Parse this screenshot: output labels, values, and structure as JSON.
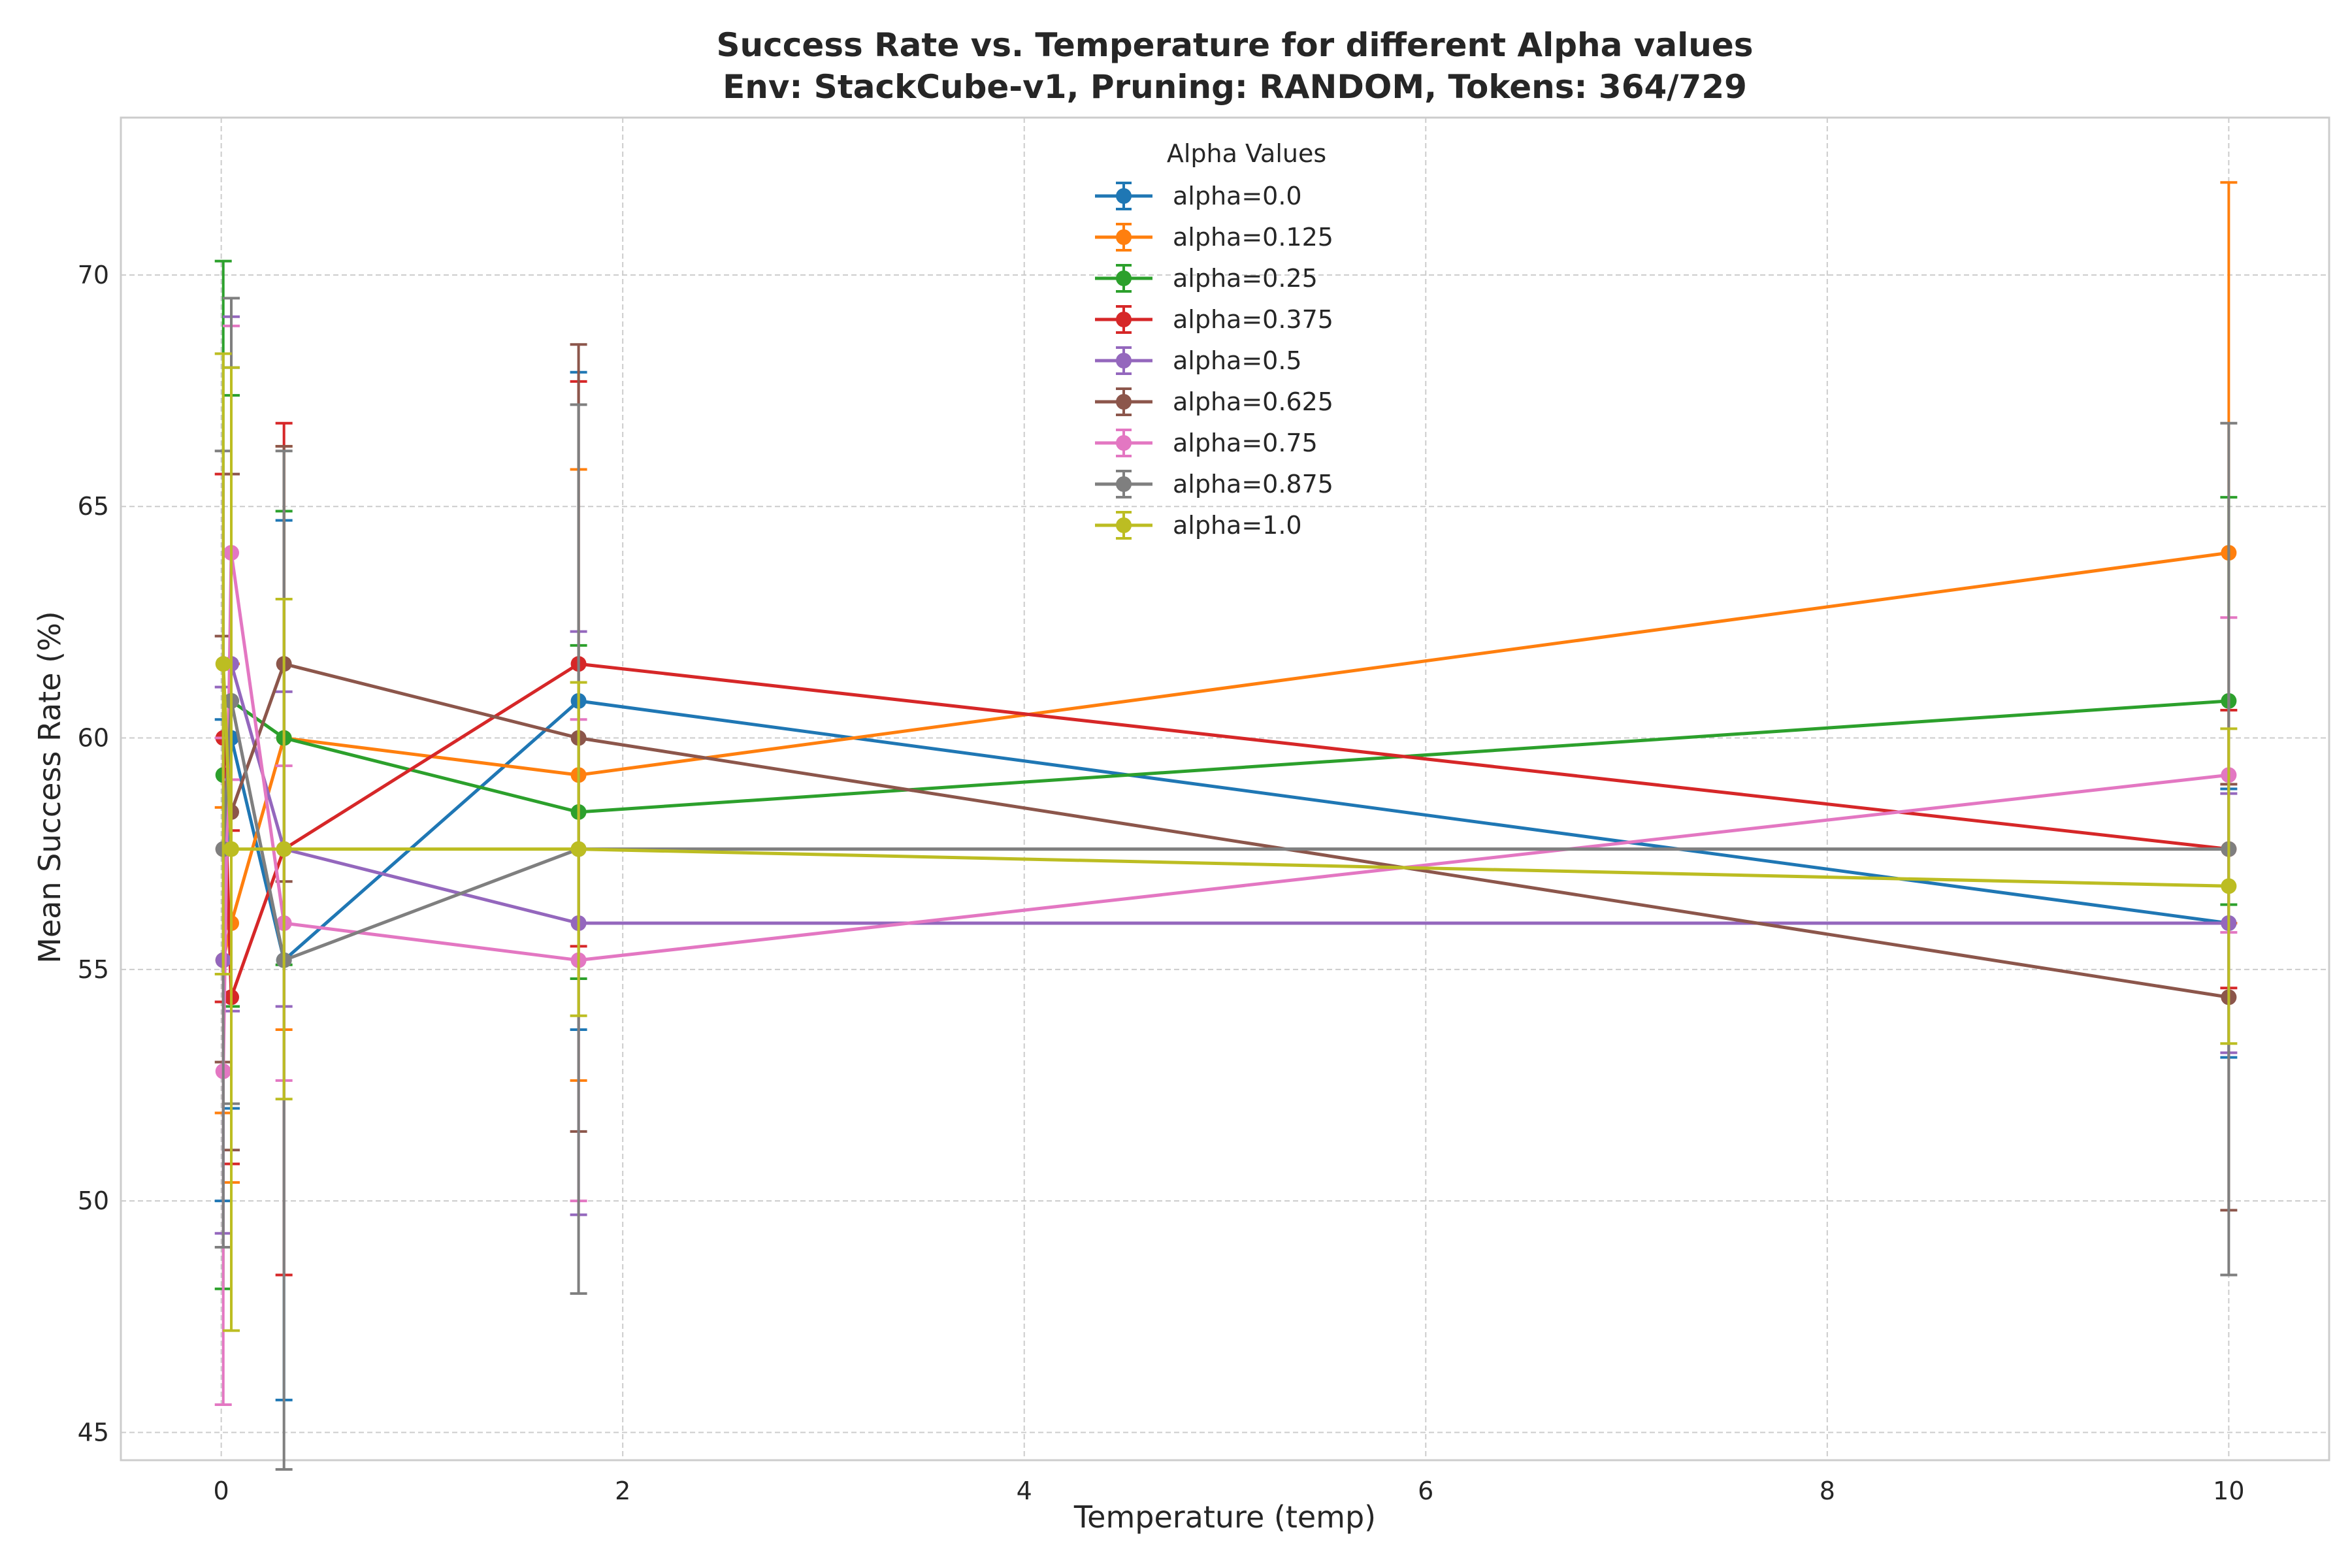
{
  "chart_data": {
    "type": "line",
    "title": "Success Rate vs. Temperature for different Alpha values",
    "subtitle": "Env: StackCube-v1, Pruning: RANDOM, Tokens: 364/729",
    "xlabel": "Temperature (temp)",
    "ylabel": "Mean Success Rate (%)",
    "xlim": [
      -0.5,
      10.5
    ],
    "ylim": [
      44.4,
      73.4
    ],
    "xticks": [
      0,
      2,
      4,
      6,
      8,
      10
    ],
    "yticks": [
      45,
      50,
      55,
      60,
      65,
      70
    ],
    "grid": true,
    "error_bars": true,
    "legend": {
      "title": "Alpha Values",
      "placement": "upper-center"
    },
    "x": [
      0.01,
      0.05,
      0.3125,
      1.78,
      10
    ],
    "series": [
      {
        "name": "alpha=0.0",
        "color": "#1f77b4",
        "values": [
          55.2,
          60.0,
          55.2,
          60.8,
          56.0
        ],
        "errors": [
          5.2,
          8.0,
          9.5,
          7.1,
          2.9
        ]
      },
      {
        "name": "alpha=0.125",
        "color": "#ff7f0e",
        "values": [
          55.2,
          56.0,
          60.0,
          59.2,
          64.0
        ],
        "errors": [
          3.3,
          5.6,
          6.3,
          6.6,
          8.0
        ]
      },
      {
        "name": "alpha=0.25",
        "color": "#2ca02c",
        "values": [
          59.2,
          60.8,
          60.0,
          58.4,
          60.8
        ],
        "errors": [
          11.1,
          6.6,
          4.9,
          3.6,
          4.4
        ]
      },
      {
        "name": "alpha=0.375",
        "color": "#d62728",
        "values": [
          60.0,
          54.4,
          57.6,
          61.6,
          57.6
        ],
        "errors": [
          5.7,
          3.6,
          9.2,
          6.1,
          3.0
        ]
      },
      {
        "name": "alpha=0.5",
        "color": "#9467bd",
        "values": [
          55.2,
          61.6,
          57.6,
          56.0,
          56.0
        ],
        "errors": [
          5.9,
          7.5,
          3.4,
          6.3,
          2.8
        ]
      },
      {
        "name": "alpha=0.625",
        "color": "#8c564b",
        "values": [
          57.6,
          58.4,
          61.6,
          60.0,
          54.4
        ],
        "errors": [
          4.6,
          7.3,
          4.7,
          8.5,
          4.6
        ]
      },
      {
        "name": "alpha=0.75",
        "color": "#e377c2",
        "values": [
          52.8,
          64.0,
          56.0,
          55.2,
          59.2
        ],
        "errors": [
          7.2,
          4.9,
          3.4,
          5.2,
          3.4
        ]
      },
      {
        "name": "alpha=0.875",
        "color": "#7f7f7f",
        "values": [
          57.6,
          60.8,
          55.2,
          57.6,
          57.6
        ],
        "errors": [
          8.6,
          8.7,
          11.0,
          9.6,
          9.2
        ]
      },
      {
        "name": "alpha=1.0",
        "color": "#bcbd22",
        "values": [
          61.6,
          57.6,
          57.6,
          57.6,
          56.8
        ],
        "errors": [
          6.7,
          10.4,
          5.4,
          3.6,
          3.4
        ]
      }
    ]
  }
}
